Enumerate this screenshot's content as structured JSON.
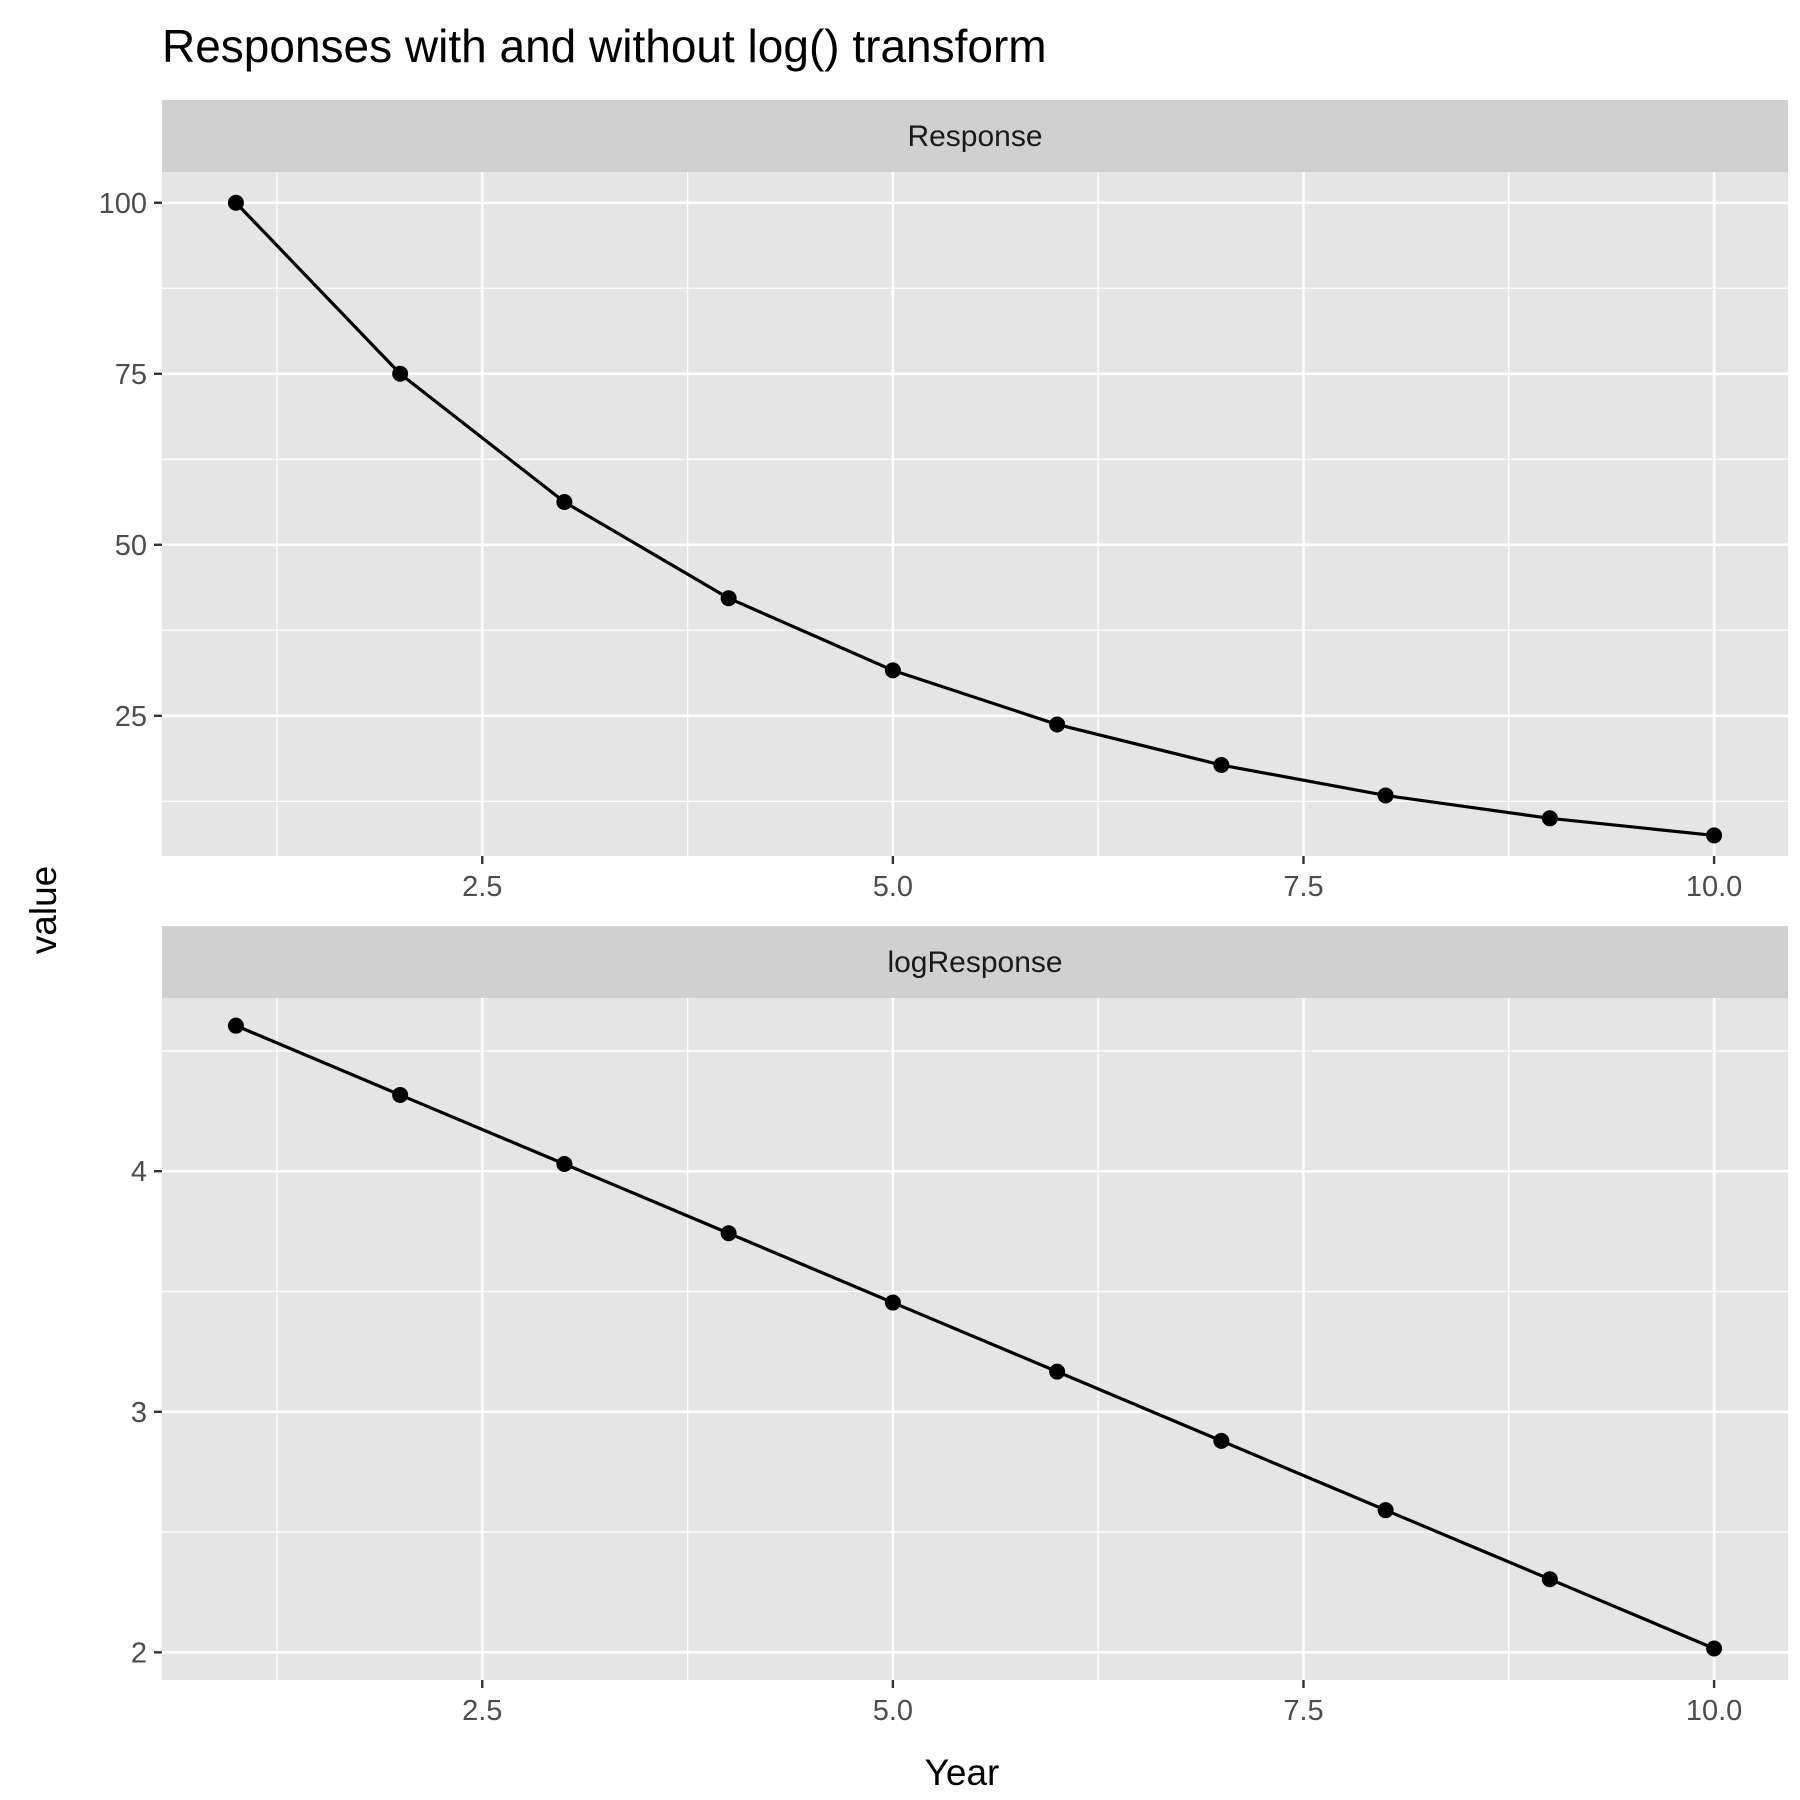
{
  "chart_data": {
    "type": "line",
    "title": "Responses with and without log() transform",
    "xlabel": "Year",
    "ylabel": "value",
    "grid": true,
    "x_range": [
      0.55,
      10.45
    ],
    "x_ticks": [
      2.5,
      5.0,
      7.5,
      10.0
    ],
    "x_tick_labels": [
      "2.5",
      "5.0",
      "7.5",
      "10.0"
    ],
    "panels": [
      {
        "name": "Response",
        "ylim": [
          4.5,
          104.5
        ],
        "y_ticks": [
          25,
          50,
          75,
          100
        ],
        "y_tick_labels": [
          "25",
          "50",
          "75",
          "100"
        ],
        "x": [
          1,
          2,
          3,
          4,
          5,
          6,
          7,
          8,
          9,
          10
        ],
        "y": [
          100,
          75,
          56.25,
          42.19,
          31.64,
          23.73,
          17.8,
          13.35,
          10.01,
          7.51
        ]
      },
      {
        "name": "logResponse",
        "ylim": [
          1.885,
          4.72
        ],
        "y_ticks": [
          2,
          3,
          4
        ],
        "y_tick_labels": [
          "2",
          "3",
          "4"
        ],
        "x": [
          1,
          2,
          3,
          4,
          5,
          6,
          7,
          8,
          9,
          10
        ],
        "y": [
          4.605,
          4.317,
          4.03,
          3.742,
          3.454,
          3.167,
          2.879,
          2.591,
          2.304,
          2.016
        ]
      }
    ],
    "colors": {
      "panel_background": "#e5e5e5",
      "strip_background": "#d0d0d0",
      "grid": "#ffffff",
      "line": "#000000",
      "point": "#000000",
      "tick_text": "#4d4d4d"
    }
  }
}
